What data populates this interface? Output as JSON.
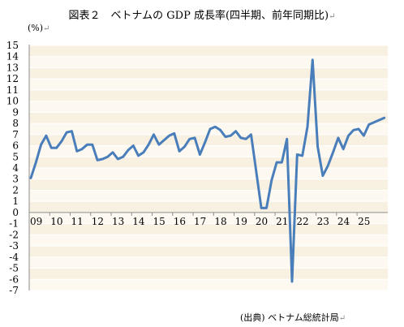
{
  "figure": {
    "title": "図表２　ベトナムの GDP 成長率(四半期、前年同期比)",
    "unit": "(%)",
    "source": "(出典) ベトナム総統計局",
    "return_mark": "↵"
  },
  "chart_data": {
    "type": "line",
    "title": "図表２　ベトナムの GDP 成長率(四半期、前年同期比)",
    "ylabel": "(%)",
    "xlabel": "",
    "ylim": [
      -7,
      15
    ],
    "yticks": [
      15,
      14,
      13,
      12,
      11,
      10,
      9,
      8,
      7,
      6,
      5,
      4,
      3,
      2,
      1,
      0,
      -1,
      -2,
      -3,
      -4,
      -5,
      -6,
      -7
    ],
    "xticks": [
      "09",
      "10",
      "11",
      "12",
      "13",
      "14",
      "15",
      "16",
      "17",
      "18",
      "19",
      "20",
      "21",
      "22",
      "23",
      "24",
      "25"
    ],
    "grid": "horizontal",
    "line_color": "#4a7ebb",
    "series": [
      {
        "values": [
          3.1,
          4.5,
          6.1,
          6.9,
          5.8,
          5.8,
          6.4,
          7.2,
          7.3,
          5.5,
          5.7,
          6.1,
          6.1,
          4.7,
          4.8,
          5.0,
          5.4,
          4.8,
          5.0,
          5.6,
          6.0,
          5.1,
          5.4,
          6.1,
          7.0,
          6.1,
          6.5,
          6.9,
          7.1,
          5.5,
          5.9,
          6.6,
          6.7,
          5.2,
          6.3,
          7.5,
          7.7,
          7.4,
          6.8,
          6.9,
          7.3,
          6.7,
          6.6,
          7.0,
          3.7,
          0.4,
          0.4,
          2.9,
          4.5,
          4.5,
          6.6,
          -6.2,
          5.2,
          5.1,
          7.7,
          13.7,
          5.9,
          3.3,
          4.2,
          5.4,
          6.7,
          5.7,
          6.9,
          7.4,
          7.5,
          6.9,
          7.9,
          8.1,
          8.3,
          8.5
        ]
      }
    ]
  }
}
